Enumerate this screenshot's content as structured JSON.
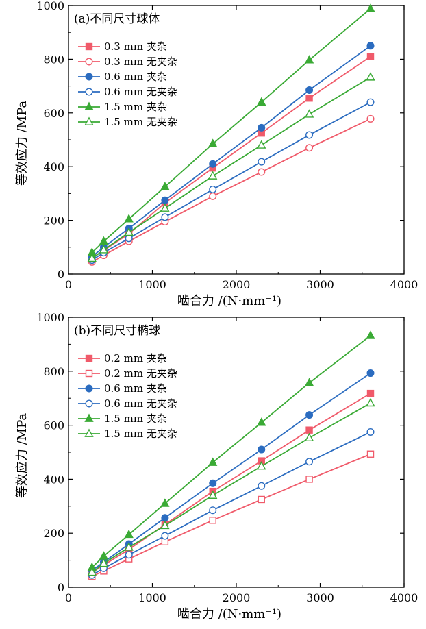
{
  "chart_data": [
    {
      "type": "line",
      "title": "(a)不同尺寸球体",
      "xlabel": "啮合力 /(N·mm⁻¹)",
      "ylabel": "等效应力 /MPa",
      "xlim": [
        0,
        4000
      ],
      "ylim": [
        0,
        1000
      ],
      "xticks": [
        0,
        1000,
        2000,
        3000,
        4000
      ],
      "yticks": [
        0,
        200,
        400,
        600,
        800,
        1000
      ],
      "legend": "top-left",
      "x": [
        280,
        420,
        720,
        1150,
        1720,
        2300,
        2870,
        3600
      ],
      "series": [
        {
          "name": "0.3 mm 夹杂",
          "color": "#f05a6a",
          "marker": "square",
          "filled": true,
          "values": [
            60,
            88,
            150,
            265,
            395,
            525,
            655,
            810
          ]
        },
        {
          "name": "0.3 mm 无夹杂",
          "color": "#f05a6a",
          "marker": "circle",
          "filled": false,
          "values": [
            45,
            70,
            122,
            195,
            290,
            380,
            470,
            578
          ]
        },
        {
          "name": "0.6 mm 夹杂",
          "color": "#2b6cc0",
          "marker": "circle",
          "filled": true,
          "values": [
            65,
            100,
            170,
            275,
            410,
            545,
            685,
            850
          ]
        },
        {
          "name": "0.6 mm 无夹杂",
          "color": "#2b6cc0",
          "marker": "circle",
          "filled": false,
          "values": [
            52,
            80,
            133,
            212,
            315,
            418,
            518,
            640
          ]
        },
        {
          "name": "1.5 mm 夹杂",
          "color": "#3aaa35",
          "marker": "triangle",
          "filled": true,
          "values": [
            80,
            122,
            205,
            325,
            485,
            640,
            797,
            988
          ]
        },
        {
          "name": "1.5 mm 无夹杂",
          "color": "#3aaa35",
          "marker": "triangle",
          "filled": false,
          "values": [
            58,
            90,
            155,
            245,
            365,
            480,
            595,
            733
          ]
        }
      ]
    },
    {
      "type": "line",
      "title": "(b)不同尺寸椭球",
      "xlabel": "啮合力 /(N·mm⁻¹)",
      "ylabel": "等效应力 /MPa",
      "xlim": [
        0,
        4000
      ],
      "ylim": [
        0,
        1000
      ],
      "xticks": [
        0,
        1000,
        2000,
        3000,
        4000
      ],
      "yticks": [
        0,
        200,
        400,
        600,
        800,
        1000
      ],
      "legend": "top-left",
      "x": [
        280,
        420,
        720,
        1150,
        1720,
        2300,
        2870,
        3600
      ],
      "series": [
        {
          "name": "0.2 mm 夹杂",
          "color": "#f05a6a",
          "marker": "square",
          "filled": true,
          "values": [
            55,
            82,
            140,
            232,
            355,
            468,
            582,
            718
          ]
        },
        {
          "name": "0.2 mm 无夹杂",
          "color": "#f05a6a",
          "marker": "square",
          "filled": false,
          "values": [
            40,
            60,
            105,
            168,
            248,
            325,
            400,
            493
          ]
        },
        {
          "name": "0.6 mm 夹杂",
          "color": "#2b6cc0",
          "marker": "circle",
          "filled": true,
          "values": [
            62,
            93,
            160,
            257,
            385,
            510,
            638,
            793
          ]
        },
        {
          "name": "0.6 mm 无夹杂",
          "color": "#2b6cc0",
          "marker": "circle",
          "filled": false,
          "values": [
            45,
            70,
            120,
            190,
            285,
            375,
            465,
            575
          ]
        },
        {
          "name": "1.5 mm 夹杂",
          "color": "#3aaa35",
          "marker": "triangle",
          "filled": true,
          "values": [
            73,
            115,
            195,
            310,
            462,
            610,
            757,
            932
          ]
        },
        {
          "name": "1.5 mm 无夹杂",
          "color": "#3aaa35",
          "marker": "triangle",
          "filled": false,
          "values": [
            55,
            88,
            148,
            228,
            340,
            448,
            553,
            682
          ]
        }
      ]
    }
  ]
}
